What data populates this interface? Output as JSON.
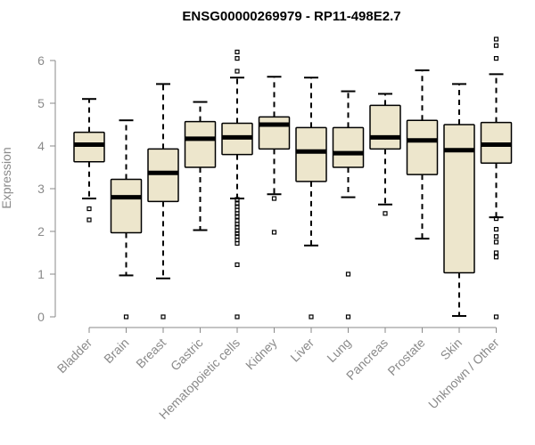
{
  "chart_data": {
    "type": "boxplot",
    "title": "ENSG00000269979 - RP11-498E2.7",
    "xlabel": "",
    "ylabel": "Expression",
    "ylim": [
      0,
      6
    ],
    "yticks": [
      0,
      1,
      2,
      3,
      4,
      5,
      6
    ],
    "box_fill": "#ede6cc",
    "median_color": "#000000",
    "categories": [
      "Bladder",
      "Brain",
      "Breast",
      "Gastric",
      "Hematopoietic cells",
      "Kidney",
      "Liver",
      "Lung",
      "Pancreas",
      "Prostate",
      "Skin",
      "Unknown / Other"
    ],
    "boxes": [
      {
        "whisker_low": 2.77,
        "q1": 3.63,
        "median": 4.03,
        "q3": 4.32,
        "whisker_high": 5.1,
        "outliers": [
          2.53,
          2.27
        ]
      },
      {
        "whisker_low": 0.97,
        "q1": 1.97,
        "median": 2.8,
        "q3": 3.22,
        "whisker_high": 4.6,
        "outliers": [
          0
        ]
      },
      {
        "whisker_low": 0.9,
        "q1": 2.7,
        "median": 3.37,
        "q3": 3.93,
        "whisker_high": 5.45,
        "outliers": [
          0
        ]
      },
      {
        "whisker_low": 2.03,
        "q1": 3.5,
        "median": 4.17,
        "q3": 4.57,
        "whisker_high": 5.03,
        "outliers": []
      },
      {
        "whisker_low": 2.77,
        "q1": 3.8,
        "median": 4.2,
        "q3": 4.53,
        "whisker_high": 5.6,
        "outliers": [
          6.2,
          6.05,
          5.75,
          2.75,
          2.65,
          2.58,
          2.5,
          2.42,
          2.35,
          2.25,
          2.17,
          2.1,
          2.02,
          1.95,
          1.88,
          1.8,
          1.72,
          1.22,
          0
        ]
      },
      {
        "whisker_low": 2.87,
        "q1": 3.93,
        "median": 4.5,
        "q3": 4.68,
        "whisker_high": 5.62,
        "outliers": [
          2.77,
          1.98
        ]
      },
      {
        "whisker_low": 1.67,
        "q1": 3.17,
        "median": 3.87,
        "q3": 4.43,
        "whisker_high": 5.6,
        "outliers": [
          0
        ]
      },
      {
        "whisker_low": 2.8,
        "q1": 3.5,
        "median": 3.83,
        "q3": 4.43,
        "whisker_high": 5.28,
        "outliers": [
          1.0,
          0
        ]
      },
      {
        "whisker_low": 2.63,
        "q1": 3.93,
        "median": 4.2,
        "q3": 4.95,
        "whisker_high": 5.22,
        "outliers": [
          2.42
        ]
      },
      {
        "whisker_low": 1.83,
        "q1": 3.33,
        "median": 4.13,
        "q3": 4.6,
        "whisker_high": 5.77,
        "outliers": []
      },
      {
        "whisker_low": 0.02,
        "q1": 1.03,
        "median": 3.9,
        "q3": 4.5,
        "whisker_high": 5.45,
        "outliers": []
      },
      {
        "whisker_low": 2.33,
        "q1": 3.6,
        "median": 4.03,
        "q3": 4.55,
        "whisker_high": 5.68,
        "outliers": [
          6.5,
          6.35,
          6.05,
          2.3,
          2.05,
          1.88,
          1.75,
          1.5,
          1.4,
          0
        ]
      }
    ]
  }
}
